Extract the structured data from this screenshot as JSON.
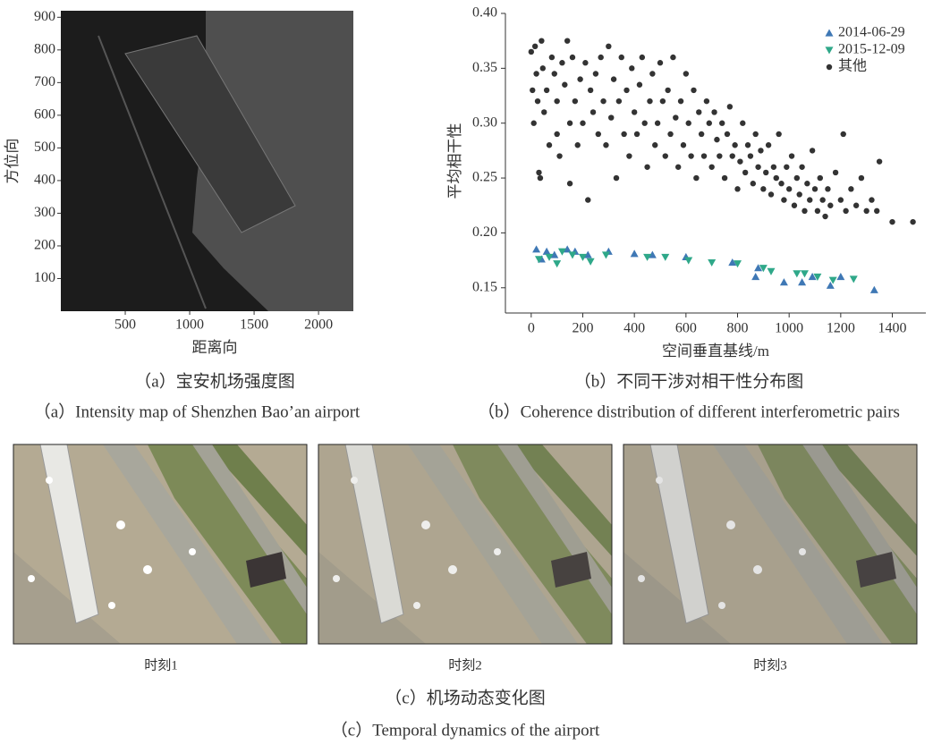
{
  "chart_data": [
    {
      "type": "image",
      "xlabel": "距离向",
      "ylabel": "方位向",
      "xlim": [
        0,
        2270
      ],
      "ylim": [
        0,
        920
      ],
      "xticks": [
        500,
        1000,
        1500,
        2000
      ],
      "yticks": [
        100,
        200,
        300,
        400,
        500,
        600,
        700,
        800,
        900
      ],
      "caption_zh": "（a）宝安机场强度图",
      "caption_en": "（a）Intensity map of Shenzhen Bao’an airport"
    },
    {
      "type": "scatter",
      "xlabel": "空间垂直基线/m",
      "ylabel": "平均相干性",
      "xlim": [
        -100,
        1530
      ],
      "ylim": [
        0.127,
        0.4
      ],
      "xticks": [
        0,
        200,
        400,
        600,
        800,
        1000,
        1200,
        1400
      ],
      "yticks": [
        {
          "value": 0.4,
          "label": "0.40"
        },
        0.35,
        {
          "value": 0.3,
          "label": "0.30"
        },
        0.25,
        {
          "value": 0.2,
          "label": "0.20"
        },
        0.15
      ],
      "legend": "upper right",
      "caption_zh": "（b）不同干涉对相干性分布图",
      "caption_en": "（b）Coherence distribution of different interferometric pairs",
      "series": [
        {
          "name": "2014-06-29",
          "color": "#3f78b5",
          "marker": "triangle-up",
          "x": [
            20,
            40,
            60,
            90,
            140,
            170,
            220,
            300,
            400,
            470,
            600,
            780,
            870,
            880,
            980,
            1050,
            1090,
            1160,
            1200,
            1330
          ],
          "values": [
            0.185,
            0.176,
            0.183,
            0.18,
            0.185,
            0.183,
            0.18,
            0.183,
            0.181,
            0.18,
            0.178,
            0.173,
            0.16,
            0.168,
            0.155,
            0.155,
            0.16,
            0.152,
            0.16,
            0.148
          ]
        },
        {
          "name": "2015-12-09",
          "color": "#2fa889",
          "marker": "triangle-down",
          "x": [
            30,
            70,
            100,
            120,
            160,
            200,
            230,
            290,
            450,
            520,
            610,
            700,
            800,
            900,
            930,
            1030,
            1060,
            1110,
            1170,
            1250
          ],
          "values": [
            0.176,
            0.178,
            0.172,
            0.183,
            0.18,
            0.178,
            0.174,
            0.18,
            0.178,
            0.178,
            0.175,
            0.173,
            0.172,
            0.168,
            0.165,
            0.163,
            0.163,
            0.16,
            0.157,
            0.158
          ]
        },
        {
          "name": "其他",
          "color": "#333333",
          "marker": "circle",
          "x": [
            0,
            5,
            10,
            15,
            20,
            25,
            30,
            35,
            40,
            45,
            50,
            60,
            70,
            80,
            90,
            100,
            100,
            110,
            120,
            130,
            140,
            150,
            150,
            160,
            170,
            180,
            190,
            200,
            210,
            220,
            230,
            240,
            250,
            260,
            270,
            280,
            290,
            300,
            310,
            320,
            330,
            340,
            350,
            360,
            370,
            380,
            390,
            400,
            410,
            420,
            430,
            440,
            450,
            460,
            470,
            480,
            490,
            500,
            510,
            520,
            530,
            540,
            550,
            560,
            570,
            580,
            590,
            600,
            610,
            620,
            630,
            640,
            650,
            660,
            670,
            680,
            690,
            700,
            710,
            720,
            730,
            740,
            750,
            760,
            770,
            780,
            790,
            800,
            810,
            820,
            830,
            840,
            850,
            860,
            870,
            880,
            890,
            900,
            910,
            920,
            930,
            940,
            950,
            960,
            970,
            980,
            990,
            1000,
            1010,
            1020,
            1030,
            1040,
            1050,
            1060,
            1070,
            1080,
            1090,
            1100,
            1110,
            1120,
            1130,
            1140,
            1150,
            1160,
            1180,
            1200,
            1210,
            1220,
            1240,
            1260,
            1280,
            1300,
            1320,
            1340,
            1350,
            1400,
            1480
          ],
          "values": [
            0.365,
            0.33,
            0.3,
            0.37,
            0.345,
            0.32,
            0.255,
            0.25,
            0.375,
            0.35,
            0.31,
            0.33,
            0.28,
            0.36,
            0.345,
            0.32,
            0.29,
            0.27,
            0.355,
            0.335,
            0.375,
            0.3,
            0.245,
            0.36,
            0.32,
            0.28,
            0.34,
            0.3,
            0.355,
            0.23,
            0.33,
            0.31,
            0.345,
            0.29,
            0.36,
            0.32,
            0.28,
            0.37,
            0.305,
            0.34,
            0.25,
            0.32,
            0.36,
            0.29,
            0.33,
            0.27,
            0.35,
            0.31,
            0.29,
            0.335,
            0.36,
            0.3,
            0.26,
            0.32,
            0.345,
            0.28,
            0.3,
            0.355,
            0.32,
            0.27,
            0.33,
            0.29,
            0.36,
            0.305,
            0.26,
            0.32,
            0.28,
            0.345,
            0.3,
            0.27,
            0.33,
            0.25,
            0.31,
            0.29,
            0.27,
            0.32,
            0.3,
            0.26,
            0.31,
            0.285,
            0.27,
            0.3,
            0.25,
            0.29,
            0.315,
            0.27,
            0.28,
            0.24,
            0.265,
            0.3,
            0.255,
            0.28,
            0.27,
            0.245,
            0.29,
            0.26,
            0.275,
            0.24,
            0.255,
            0.28,
            0.235,
            0.26,
            0.25,
            0.29,
            0.245,
            0.23,
            0.26,
            0.24,
            0.27,
            0.225,
            0.25,
            0.235,
            0.26,
            0.22,
            0.245,
            0.23,
            0.275,
            0.24,
            0.22,
            0.25,
            0.23,
            0.215,
            0.24,
            0.225,
            0.255,
            0.23,
            0.29,
            0.22,
            0.24,
            0.225,
            0.25,
            0.22,
            0.23,
            0.22,
            0.265,
            0.21,
            0.21
          ]
        }
      ]
    }
  ],
  "panel_c": {
    "labels": [
      "时刻1",
      "时刻2",
      "时刻3"
    ],
    "caption_zh": "（c）机场动态变化图",
    "caption_en": "（c）Temporal dynamics of the airport"
  }
}
